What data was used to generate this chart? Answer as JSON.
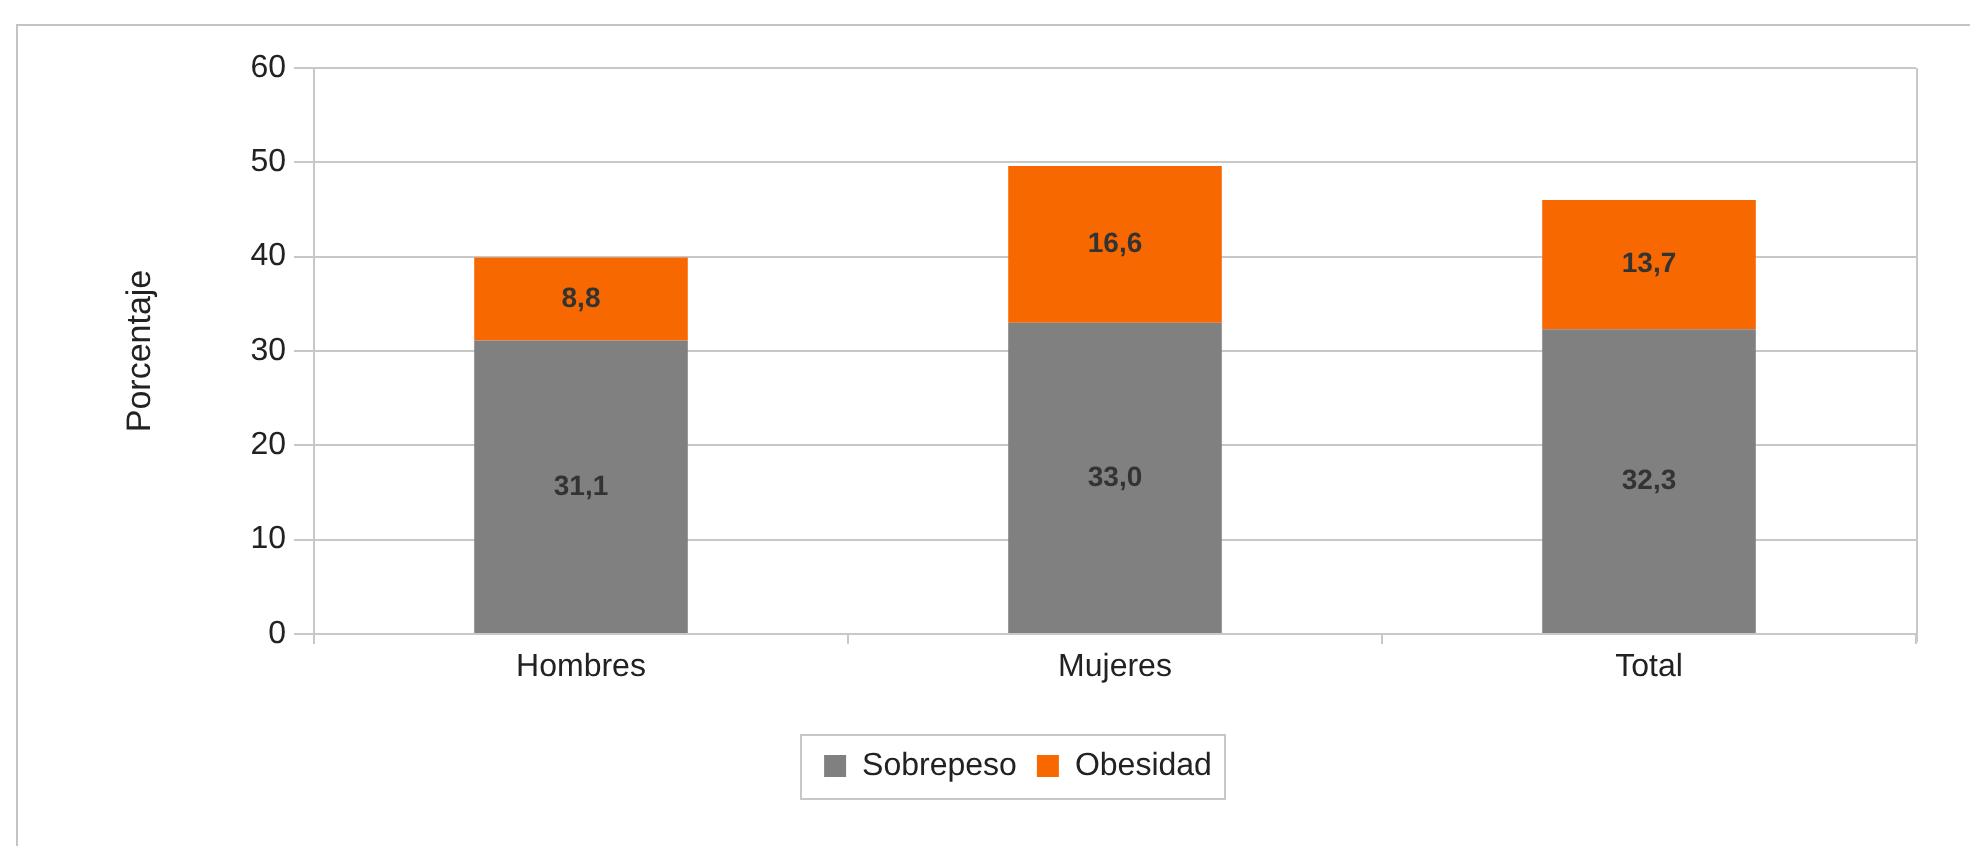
{
  "chart_data": {
    "type": "bar",
    "ylabel": "Porcentaje",
    "categories": [
      "Hombres",
      "Mujeres",
      "Total"
    ],
    "series": [
      {
        "name": "Sobrepeso",
        "color": "#808080",
        "values": [
          31.1,
          33.0,
          32.3
        ],
        "value_labels": [
          "31,1",
          "33,0",
          "32,3"
        ]
      },
      {
        "name": "Obesidad",
        "color": "#f76800",
        "values": [
          8.8,
          16.6,
          13.7
        ],
        "value_labels": [
          "8,8",
          "16,6",
          "13,7"
        ]
      }
    ],
    "stacked": true,
    "ylim": [
      0,
      60
    ],
    "yticks": [
      0,
      10,
      20,
      30,
      40,
      50,
      60
    ],
    "grid": "y",
    "legend": "bottom"
  }
}
